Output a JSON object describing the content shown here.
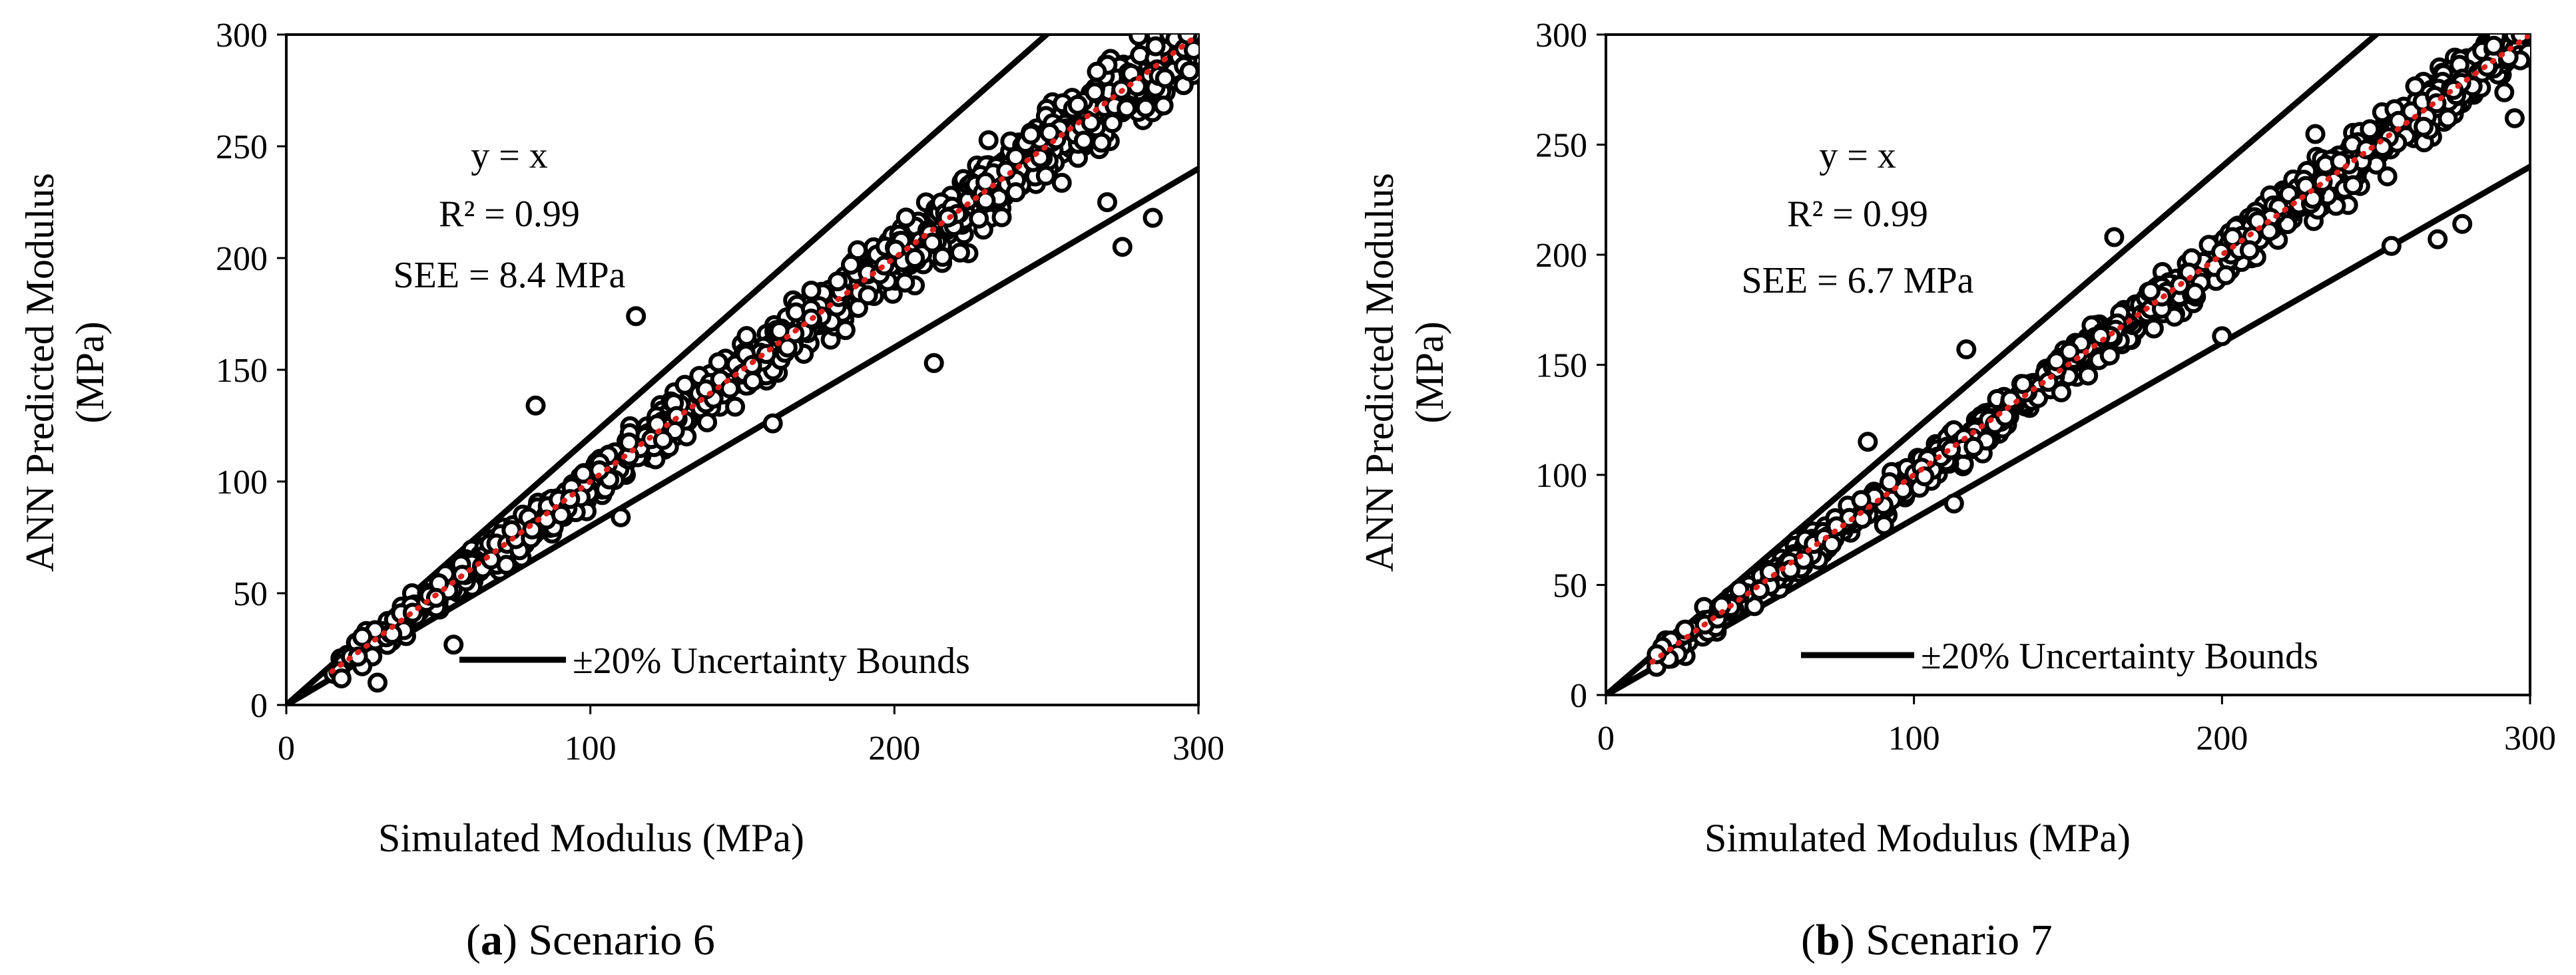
{
  "chart_data": [
    {
      "type": "scatter",
      "panel": "a",
      "caption_letter": "a",
      "caption_text": ") Scenario 6",
      "xlabel": "Simulated Modulus (MPa)",
      "ylabel_line1": "ANN Predicted Modulus",
      "ylabel_line2": "(MPa)",
      "xlim": [
        0,
        300
      ],
      "ylim": [
        0,
        300
      ],
      "xticks": [
        0,
        100,
        200,
        300
      ],
      "yticks": [
        0,
        50,
        100,
        150,
        200,
        250,
        300
      ],
      "annotations": [
        "y = x",
        "R² = 0.99",
        "SEE = 8.4 MPa"
      ],
      "legend": "±20% Uncertainty Bounds",
      "lines": [
        {
          "name": "upper bound (+20%)",
          "slope": 1.2
        },
        {
          "name": "lower bound (-20%)",
          "slope": 0.8
        },
        {
          "name": "y = x",
          "slope": 1.0,
          "color": "#e0201b"
        }
      ],
      "outliers": [
        [
          82,
          134
        ],
        [
          115,
          174
        ],
        [
          213,
          153
        ],
        [
          275,
          205
        ],
        [
          55,
          27
        ],
        [
          30,
          10
        ],
        [
          160,
          126
        ],
        [
          285,
          218
        ],
        [
          270,
          225
        ],
        [
          110,
          84
        ]
      ],
      "see": 8.4,
      "n_points": 1100,
      "x_range": [
        15,
        300
      ]
    },
    {
      "type": "scatter",
      "panel": "b",
      "caption_letter": "b",
      "caption_text": ") Scenario 7",
      "xlabel": "Simulated Modulus (MPa)",
      "ylabel_line1": "ANN Predicted Modulus",
      "ylabel_line2": "(MPa)",
      "xlim": [
        0,
        300
      ],
      "ylim": [
        0,
        300
      ],
      "xticks": [
        0,
        100,
        200,
        300
      ],
      "yticks": [
        0,
        50,
        100,
        150,
        200,
        250,
        300
      ],
      "annotations": [
        "y = x",
        "R² = 0.99",
        "SEE = 6.7 MPa"
      ],
      "legend": "±20% Uncertainty Bounds",
      "lines": [
        {
          "name": "upper bound (+20%)",
          "slope": 1.2
        },
        {
          "name": "lower bound (-20%)",
          "slope": 0.8
        },
        {
          "name": "y = x",
          "slope": 1.0,
          "color": "#e0201b"
        }
      ],
      "outliers": [
        [
          117,
          157
        ],
        [
          200,
          163
        ],
        [
          255,
          204
        ],
        [
          278,
          214
        ],
        [
          113,
          87
        ],
        [
          270,
          207
        ],
        [
          165,
          208
        ],
        [
          85,
          115
        ],
        [
          295,
          262
        ]
      ],
      "see": 6.7,
      "n_points": 1100,
      "x_range": [
        15,
        300
      ]
    }
  ]
}
